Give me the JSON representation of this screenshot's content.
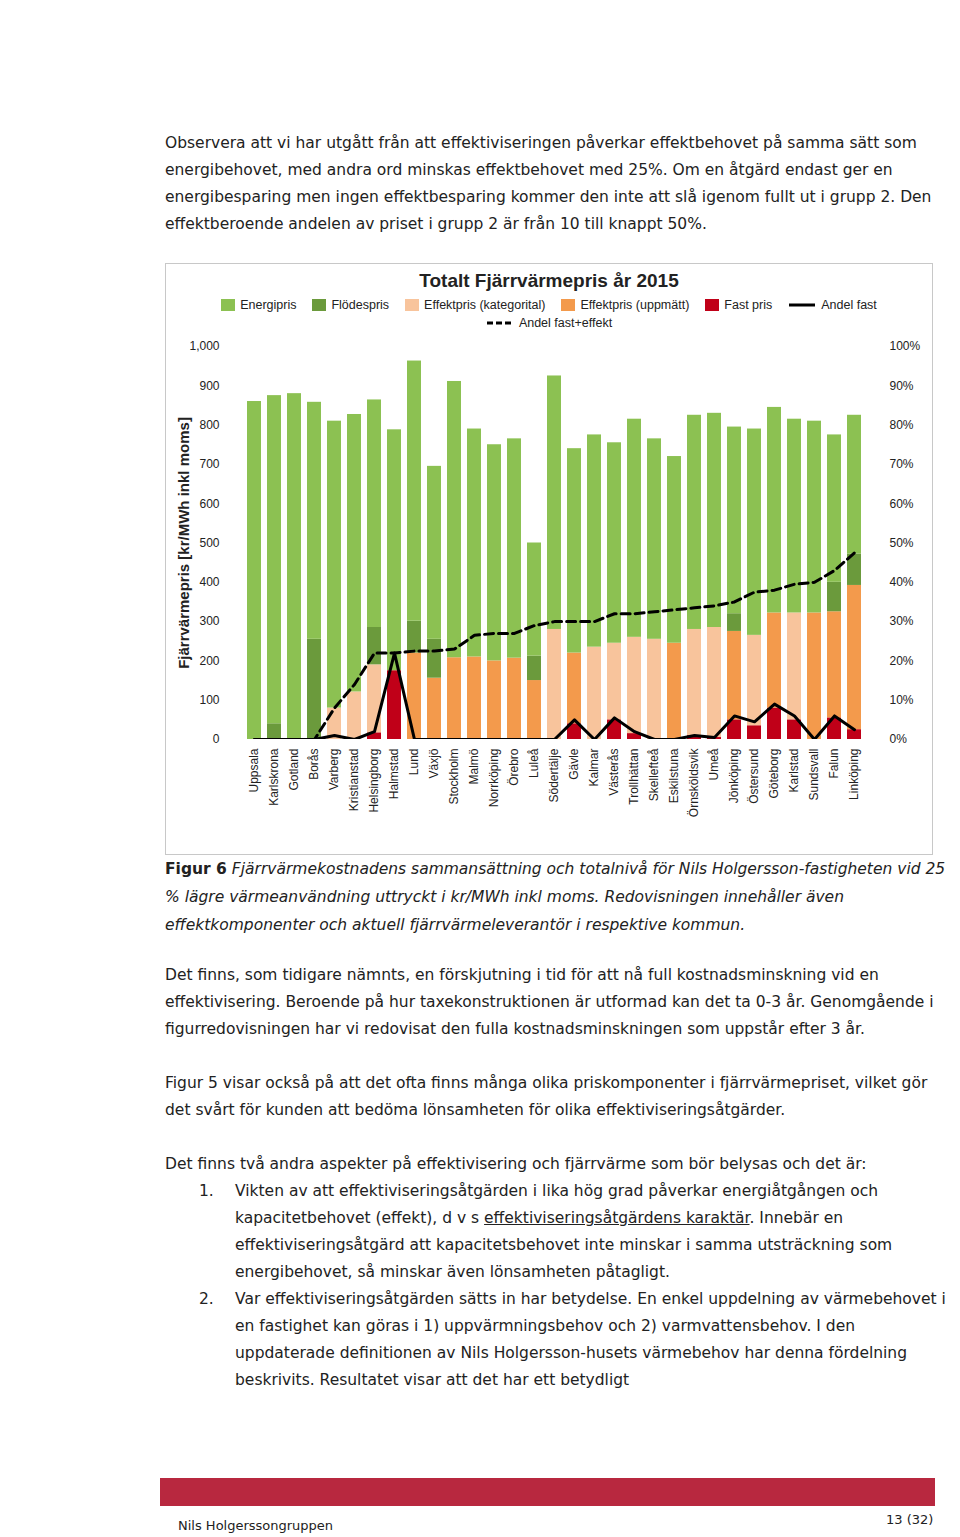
{
  "page": {
    "paragraphs_before": [
      "Observera att vi har utgått från att effektiviseringen påverkar effektbehovet på samma sätt som energibehovet, med andra ord minskas effektbehovet med 25%. Om en åtgärd endast ger en energibesparing men ingen effektbesparing kommer den inte att slå igenom fullt ut i grupp 2. Den effektberoende andelen av priset i grupp 2 är från 10 till knappt 50%."
    ],
    "caption": {
      "label": "Figur 6",
      "text": "Fjärrvärmekostnadens sammansättning och totalnivå för Nils Holgersson-fastigheten vid 25 % lägre värmeanvändning uttryckt i kr/MWh inkl moms. Redovisningen innehåller även effektkomponenter och aktuell fjärrvärmeleverantör i respektive kommun."
    },
    "paragraphs_after": [
      "Det finns, som tidigare nämnts, en förskjutning i tid för att nå full kostnadsminskning vid en effektivisering. Beroende på hur taxekonstruktionen är utformad kan det ta 0-3 år. Genomgående i figurredovisningen har vi redovisat den fulla kostnadsminskningen som uppstår efter 3 år.",
      "Figur 5 visar också på att det ofta finns många olika priskomponenter i fjärrvärmepriset, vilket gör det svårt för kunden att bedöma lönsamheten för olika effektiviseringsåtgärder.",
      "Det finns två andra aspekter på effektivisering och fjärrvärme som bör belysas och det är:"
    ],
    "list": [
      {
        "number": "1.",
        "before": "Vikten av att effektiviseringsåtgärden i lika hög grad påverkar energiåtgången och kapacitetbehovet (effekt), d v s ",
        "underlined": "effektiviseringsåtgärdens karaktär",
        "after": ". Innebär en effektiviseringsåtgärd att kapacitetsbehovet inte minskar i samma utsträckning som energibehovet, så minskar även lönsamheten påtagligt."
      },
      {
        "number": "2.",
        "before": "Var effektiviseringsåtgärden sätts in har betydelse. En enkel uppdelning av värmebehovet i en fastighet kan göras i 1) uppvärmningsbehov och 2) varmvattensbehov. I den uppdaterade definitionen av Nils Holgersson-husets värmebehov har denna fördelning beskrivits. Resultatet visar att det har ett betydligt",
        "underlined": "",
        "after": ""
      }
    ],
    "footer": {
      "left": "Nils Holgerssongruppen",
      "right": "13 (32)"
    }
  },
  "chart_data": {
    "type": "bar",
    "title": "Totalt Fjärrvärmepris år 2015",
    "ylabel": "Fjärrvärmepris [kr/MWh inkl moms]",
    "stacked": true,
    "grid": false,
    "legend": "top",
    "categories": [
      "Uppsala",
      "Karlskrona",
      "Gotland",
      "Borås",
      "Varberg",
      "Kristianstad",
      "Helsingborg",
      "Halmstad",
      "Lund",
      "Växjö",
      "Stockholm",
      "Malmö",
      "Norrköping",
      "Örebro",
      "Luleå",
      "Södertälje",
      "Gävle",
      "Kalmar",
      "Västerås",
      "Trollhättan",
      "Skellefteå",
      "Eskilstuna",
      "Örnsköldsvik",
      "Umeå",
      "Jönköping",
      "Östersund",
      "Göteborg",
      "Karlstad",
      "Sundsvall",
      "Falun",
      "Linköping"
    ],
    "ylim": [
      0,
      1000
    ],
    "yticks": [
      0,
      100,
      200,
      300,
      400,
      500,
      600,
      700,
      800,
      900,
      1000
    ],
    "y2lim": [
      0,
      100
    ],
    "y2ticks": [
      {
        "value": 0,
        "label": "0%"
      },
      {
        "value": 10,
        "label": "10%"
      },
      {
        "value": 20,
        "label": "20%"
      },
      {
        "value": 30,
        "label": "30%"
      },
      {
        "value": 40,
        "label": "40%"
      },
      {
        "value": 50,
        "label": "50%"
      },
      {
        "value": 60,
        "label": "60%"
      },
      {
        "value": 70,
        "label": "70%"
      },
      {
        "value": 80,
        "label": "80%"
      },
      {
        "value": 90,
        "label": "90%"
      },
      {
        "value": 100,
        "label": "100%"
      }
    ],
    "series": [
      {
        "name": "Energipris",
        "type": "bar",
        "color": "#8cc152",
        "values": [
          860,
          835,
          880,
          603,
          730,
          706,
          579,
          613,
          662,
          440,
          703,
          580,
          550,
          558,
          288,
          645,
          520,
          540,
          510,
          555,
          510,
          475,
          545,
          545,
          475,
          525,
          523,
          493,
          488,
          375,
          353
        ]
      },
      {
        "name": "Flödespris",
        "type": "bar",
        "color": "#6b9a3c",
        "values": [
          0,
          40,
          0,
          255,
          0,
          0,
          95,
          0,
          81,
          99,
          0,
          0,
          0,
          0,
          62,
          0,
          0,
          0,
          0,
          0,
          0,
          0,
          0,
          0,
          45,
          0,
          0,
          0,
          0,
          75,
          80
        ]
      },
      {
        "name": "Effektpris (kategorital)",
        "type": "bar",
        "color": "#f8c49c",
        "values": [
          0,
          0,
          0,
          0,
          80,
          121,
          173,
          0,
          0,
          0,
          0,
          0,
          0,
          0,
          0,
          280,
          0,
          235,
          195,
          245,
          255,
          0,
          270,
          280,
          0,
          230,
          0,
          272,
          0,
          0,
          0
        ]
      },
      {
        "name": "Effektpris (uppmätt)",
        "type": "bar",
        "color": "#f39a4c",
        "values": [
          0,
          0,
          0,
          0,
          0,
          0,
          0,
          0,
          220,
          156,
          208,
          210,
          200,
          207,
          150,
          0,
          180,
          0,
          0,
          0,
          0,
          245,
          0,
          0,
          225,
          0,
          242,
          0,
          322,
          270,
          367
        ]
      },
      {
        "name": "Fast pris",
        "type": "bar",
        "color": "#c00018",
        "values": [
          0,
          0,
          0,
          0,
          0,
          0,
          17,
          175,
          0,
          0,
          0,
          0,
          0,
          0,
          0,
          0,
          40,
          0,
          50,
          15,
          0,
          0,
          10,
          5,
          50,
          35,
          80,
          50,
          0,
          55,
          25
        ]
      },
      {
        "name": "Andel fast",
        "type": "line",
        "axis": "y2",
        "color": "#000000",
        "line_style": "solid",
        "values": [
          0,
          0,
          0,
          0,
          1,
          0,
          2,
          22,
          0,
          0,
          0,
          0,
          0,
          0,
          0,
          0,
          5,
          0,
          5.5,
          2,
          0,
          0,
          1,
          0.5,
          6,
          4.5,
          9,
          6,
          0,
          6,
          2.5
        ]
      },
      {
        "name": "Andel fast+effekt",
        "type": "line",
        "axis": "y2",
        "color": "#000000",
        "line_style": "dashed",
        "values": [
          0,
          0,
          0,
          0,
          8,
          14,
          22,
          22,
          22.5,
          22.5,
          23,
          26.5,
          27,
          27,
          29,
          30,
          30,
          30,
          32,
          32,
          32.5,
          33,
          33.5,
          34,
          35,
          37.5,
          38,
          39.5,
          40,
          43,
          47.5
        ]
      }
    ]
  }
}
